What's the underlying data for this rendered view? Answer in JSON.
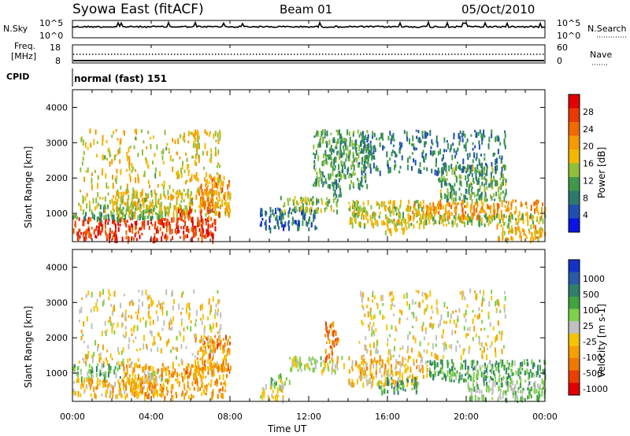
{
  "header": {
    "title": "Syowa East (fitACF)",
    "beam": "Beam 01",
    "date": "05/Oct/2010"
  },
  "strips": {
    "nsky_label": "N.Sky",
    "nsky_tick_top": "10^5",
    "nsky_tick_bottom": "10^0",
    "nsearch_label": "N.Search",
    "nsearch_tick_top": "10^5",
    "nsearch_tick_bottom": "10^0",
    "freq_label_1": "Freq.",
    "freq_label_2": "[MHz]",
    "freq_tick_top": "18",
    "freq_tick_bottom": "8",
    "nave_label": "Nave",
    "nave_tick_top": "60",
    "nave_tick_bottom": "0",
    "cpid_label": "CPID",
    "cpid_value": "normal (fast) 151"
  },
  "colors": {
    "power_scale": [
      "#0a14e6",
      "#1f4fb0",
      "#2b7a6e",
      "#3e9a4a",
      "#8fbf3a",
      "#f2b800",
      "#f59a00",
      "#f06a00",
      "#e83a00",
      "#e00000"
    ],
    "velocity_scale": [
      "#1432c8",
      "#2a5aa8",
      "#2f7f6a",
      "#3fa33e",
      "#7ed04a",
      "#c0c0c0",
      "#f5c400",
      "#f5a000",
      "#f07800",
      "#e84000",
      "#e00000"
    ]
  },
  "chart_data": [
    {
      "type": "heatmap",
      "panel": "power",
      "ylabel": "Slant Range [km]",
      "xlabel": "",
      "ylim": [
        200,
        4500
      ],
      "yticks": [
        "1000",
        "2000",
        "3000",
        "4000"
      ],
      "colorbar_label": "Power [dB]",
      "colorbar_ticks": [
        "4",
        "8",
        "12",
        "16",
        "20",
        "24",
        "28"
      ],
      "colorbar_range": [
        0,
        32
      ],
      "xticks": [
        "00:00",
        "04:00",
        "08:00",
        "12:00",
        "16:00",
        "20:00",
        "00:00"
      ],
      "regions": [
        {
          "t": [
            0.0,
            7.3
          ],
          "r": [
            280,
            900
          ],
          "v": 27
        },
        {
          "t": [
            0.0,
            4.5
          ],
          "r": [
            900,
            1300
          ],
          "v": 12
        },
        {
          "t": [
            2.0,
            8.0
          ],
          "r": [
            1000,
            1700
          ],
          "v": 17
        },
        {
          "t": [
            5.3,
            7.5
          ],
          "r": [
            800,
            1200
          ],
          "v": 26
        },
        {
          "t": [
            6.4,
            8.0
          ],
          "r": [
            1200,
            2100
          ],
          "v": 22
        },
        {
          "t": [
            0.3,
            7.5
          ],
          "r": [
            1300,
            3400
          ],
          "v": 17
        },
        {
          "t": [
            6.0,
            6.4
          ],
          "r": [
            2000,
            3400
          ],
          "v": 18
        },
        {
          "t": [
            9.5,
            12.5
          ],
          "r": [
            600,
            1200
          ],
          "v": 7
        },
        {
          "t": [
            10.5,
            13.5
          ],
          "r": [
            1100,
            1500
          ],
          "v": 14
        },
        {
          "t": [
            13.2,
            13.6
          ],
          "r": [
            1500,
            2200
          ],
          "v": 10
        },
        {
          "t": [
            12.2,
            15.0
          ],
          "r": [
            1800,
            3400
          ],
          "v": 11
        },
        {
          "t": [
            14.0,
            18.0
          ],
          "r": [
            700,
            1400
          ],
          "v": 15
        },
        {
          "t": [
            15.8,
            17.0
          ],
          "r": [
            500,
            900
          ],
          "v": 18
        },
        {
          "t": [
            17.0,
            24.0
          ],
          "r": [
            900,
            1400
          ],
          "v": 21
        },
        {
          "t": [
            17.5,
            24.0
          ],
          "r": [
            700,
            1000
          ],
          "v": 14
        },
        {
          "t": [
            18.5,
            22.0
          ],
          "r": [
            1400,
            2400
          ],
          "v": 12
        },
        {
          "t": [
            21.5,
            24.0
          ],
          "r": [
            300,
            700
          ],
          "v": 19
        },
        {
          "t": [
            14.5,
            22.0
          ],
          "r": [
            2200,
            3400
          ],
          "v": 8
        }
      ]
    },
    {
      "type": "heatmap",
      "panel": "velocity",
      "ylabel": "Slant Range [km]",
      "xlabel": "Time UT",
      "ylim": [
        200,
        4500
      ],
      "yticks": [
        "1000",
        "2000",
        "3000",
        "4000"
      ],
      "colorbar_label": "Velocity [m s-1]",
      "colorbar_ticks": [
        "1000",
        "500",
        "100",
        "25",
        "-25",
        "-100",
        "-500",
        "-1000"
      ],
      "colorbar_range": [
        -1200,
        1200
      ],
      "xticks": [
        "00:00",
        "04:00",
        "08:00",
        "12:00",
        "16:00",
        "20:00",
        "00:00"
      ],
      "regions": [
        {
          "t": [
            0.0,
            4.5
          ],
          "r": [
            400,
            900
          ],
          "v": -300
        },
        {
          "t": [
            2.5,
            7.8
          ],
          "r": [
            350,
            1300
          ],
          "v": -450
        },
        {
          "t": [
            3.5,
            5.0
          ],
          "r": [
            850,
            1100
          ],
          "v": 0
        },
        {
          "t": [
            0.0,
            2.5
          ],
          "r": [
            900,
            1300
          ],
          "v": 350
        },
        {
          "t": [
            6.2,
            8.0
          ],
          "r": [
            1100,
            2100
          ],
          "v": -500
        },
        {
          "t": [
            0.3,
            7.5
          ],
          "r": [
            1300,
            3400
          ],
          "v": -150
        },
        {
          "t": [
            9.5,
            10.7
          ],
          "r": [
            300,
            700
          ],
          "v": -180
        },
        {
          "t": [
            10.0,
            11.0
          ],
          "r": [
            600,
            1000
          ],
          "v": 120
        },
        {
          "t": [
            11.0,
            13.8
          ],
          "r": [
            1100,
            1500
          ],
          "v": 0
        },
        {
          "t": [
            12.8,
            13.5
          ],
          "r": [
            1400,
            2500
          ],
          "v": -700
        },
        {
          "t": [
            14.0,
            18.0
          ],
          "r": [
            700,
            1500
          ],
          "v": -250
        },
        {
          "t": [
            15.5,
            17.5
          ],
          "r": [
            500,
            900
          ],
          "v": 450
        },
        {
          "t": [
            18.0,
            24.0
          ],
          "r": [
            800,
            1400
          ],
          "v": 400
        },
        {
          "t": [
            20.0,
            24.0
          ],
          "r": [
            300,
            800
          ],
          "v": 250
        },
        {
          "t": [
            14.5,
            22.0
          ],
          "r": [
            1500,
            3400
          ],
          "v": -120
        }
      ]
    }
  ]
}
